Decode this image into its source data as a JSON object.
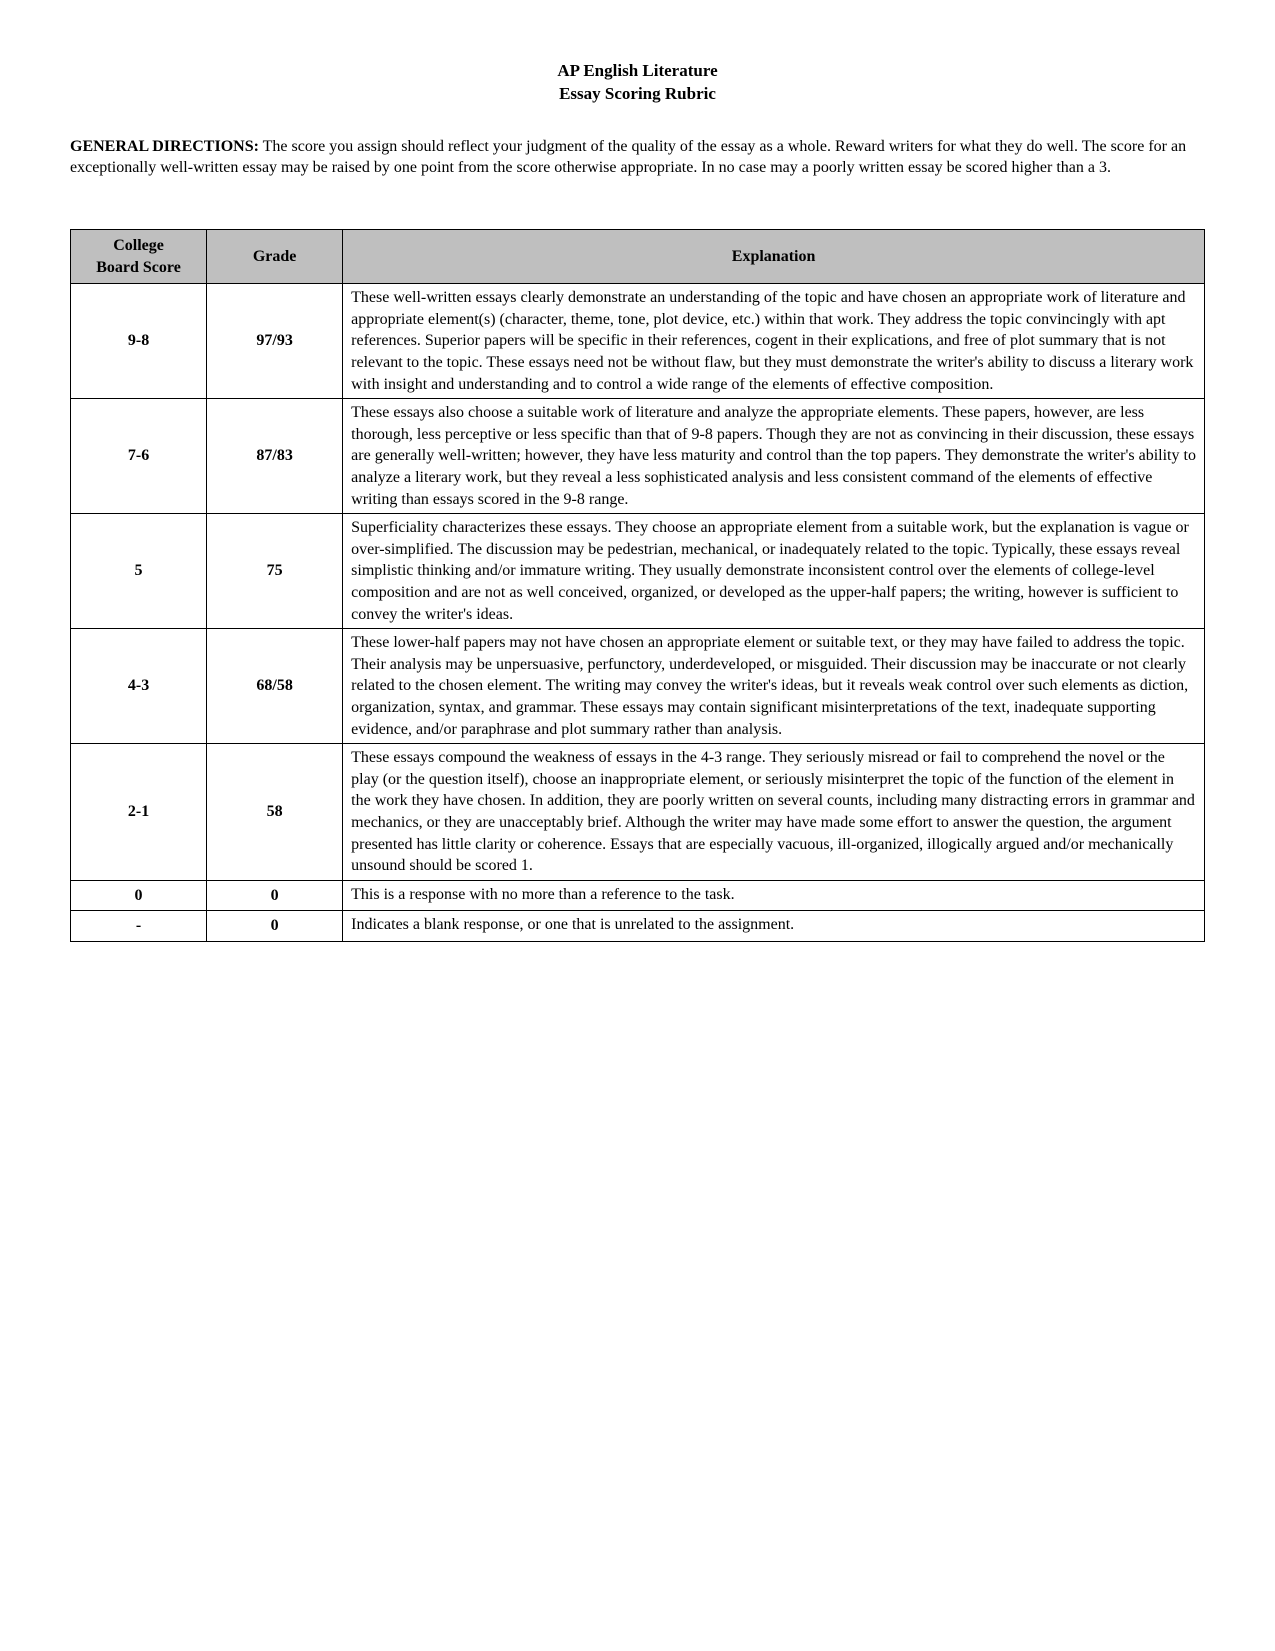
{
  "title_line1": "AP English Literature",
  "title_line2": "Essay Scoring Rubric",
  "directions_label": "GENERAL DIRECTIONS:",
  "directions_text": " The score you assign should reflect your judgment of the quality of the essay as a whole. Reward writers for what they do well. The score for an exceptionally well-written essay may be raised by one point from the score otherwise appropriate. In no case may a poorly written essay be scored higher than a 3.",
  "headers": {
    "col1_line1": "College",
    "col1_line2": "Board Score",
    "col2": "Grade",
    "col3": "Explanation"
  },
  "rows": [
    {
      "score": "9-8",
      "grade": "97/93",
      "explanation": "These well-written essays clearly demonstrate an understanding of the topic and have chosen an appropriate work of literature and appropriate element(s) (character, theme, tone, plot device, etc.) within that work. They address the topic convincingly with apt references. Superior papers will be specific in their references, cogent in their explications, and free of plot summary that is not relevant to the topic. These essays need not be without flaw, but they must demonstrate the writer's ability to discuss a literary work with insight and understanding and to control a wide range of the elements of effective composition."
    },
    {
      "score": "7-6",
      "grade": "87/83",
      "explanation": "These essays also choose a suitable work of literature and analyze the appropriate elements. These papers, however, are less thorough, less perceptive or less specific than that of 9-8 papers. Though they are not as convincing in their discussion, these essays are generally well-written; however, they have less maturity and control than the top papers. They demonstrate the writer's ability to analyze a literary work, but they reveal a less sophisticated analysis and less consistent command of the elements of effective writing than essays scored in the 9-8 range."
    },
    {
      "score": "5",
      "grade": "75",
      "explanation": "Superficiality characterizes these essays. They choose an appropriate element from a suitable work, but the explanation is vague or over-simplified. The discussion may be pedestrian, mechanical, or inadequately related to the topic. Typically, these essays reveal simplistic thinking and/or immature writing. They usually demonstrate inconsistent control over the elements of college-level composition and are not as well conceived, organized, or developed as the upper-half papers; the writing, however is sufficient to convey the writer's ideas."
    },
    {
      "score": "4-3",
      "grade": "68/58",
      "explanation": "These lower-half papers may not have chosen an appropriate element or suitable text, or they may have failed to address the topic. Their analysis may be unpersuasive, perfunctory, underdeveloped, or misguided. Their discussion may be inaccurate or not clearly related to the chosen element. The writing may convey the writer's ideas, but it reveals weak control over such elements as diction, organization, syntax, and grammar. These essays may contain significant misinterpretations of the text, inadequate supporting evidence, and/or paraphrase and plot summary rather than analysis."
    },
    {
      "score": "2-1",
      "grade": "58",
      "explanation": "These essays compound the weakness of essays in the 4-3 range. They seriously misread or fail to comprehend the novel or the play (or the question itself), choose an inappropriate element, or seriously misinterpret the topic of the function of the element in the work they have chosen. In addition, they are poorly written on several counts, including many distracting errors in grammar and mechanics, or they are unacceptably brief. Although the writer may have made some effort to answer the question, the argument presented has little clarity or coherence. Essays that are especially vacuous, ill-organized, illogically argued and/or mechanically unsound should be scored 1."
    },
    {
      "score": "0",
      "grade": "0",
      "explanation": "This is a response with no more than a reference to the task."
    },
    {
      "score": "-",
      "grade": "0",
      "explanation": "Indicates a blank response, or one that is unrelated to the assignment."
    }
  ]
}
